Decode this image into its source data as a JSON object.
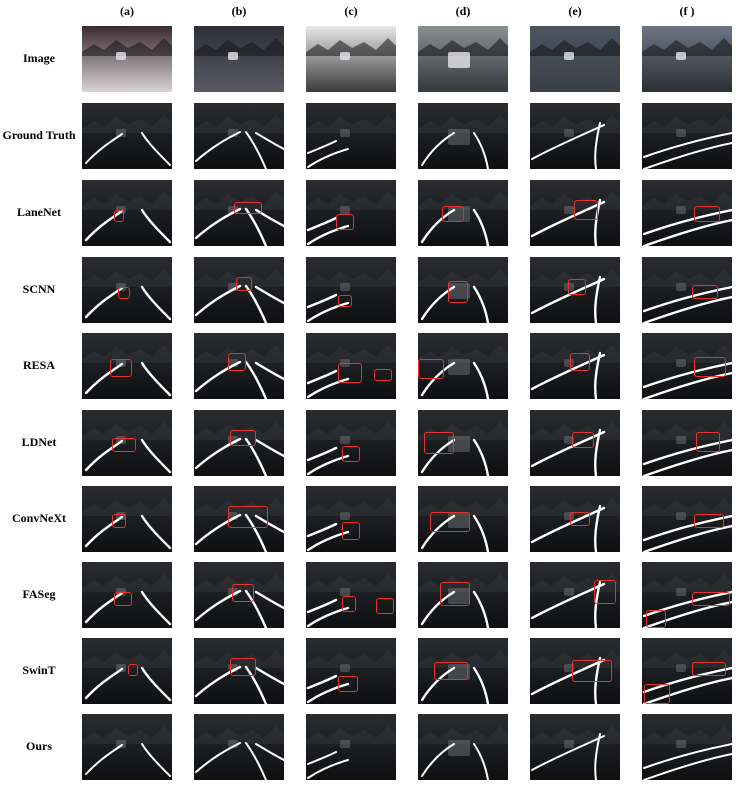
{
  "columns": [
    "(a)",
    "(b)",
    "(c)",
    "(d)",
    "(e)",
    "(f )"
  ],
  "rows": [
    "Image",
    "Ground Truth",
    "LaneNet",
    "SCNN",
    "RESA",
    "LDNet",
    "ConvNeXt",
    "FASeg",
    "SwinT",
    "Ours"
  ],
  "colors": {
    "highlight_box": "#e8322d",
    "lane": "#ffffff",
    "background": "#ffffff"
  }
}
